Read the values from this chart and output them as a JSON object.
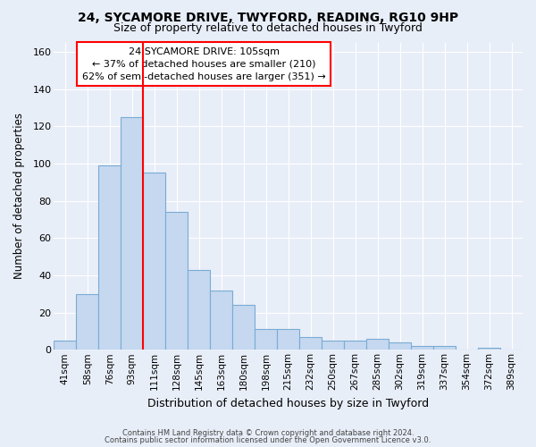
{
  "title1": "24, SYCAMORE DRIVE, TWYFORD, READING, RG10 9HP",
  "title2": "Size of property relative to detached houses in Twyford",
  "xlabel": "Distribution of detached houses by size in Twyford",
  "ylabel": "Number of detached properties",
  "categories": [
    "41sqm",
    "58sqm",
    "76sqm",
    "93sqm",
    "111sqm",
    "128sqm",
    "145sqm",
    "163sqm",
    "180sqm",
    "198sqm",
    "215sqm",
    "232sqm",
    "250sqm",
    "267sqm",
    "285sqm",
    "302sqm",
    "319sqm",
    "337sqm",
    "354sqm",
    "372sqm",
    "389sqm"
  ],
  "values": [
    5,
    30,
    99,
    125,
    95,
    74,
    43,
    32,
    24,
    11,
    11,
    7,
    5,
    5,
    6,
    4,
    2,
    2,
    0,
    1,
    0
  ],
  "bar_color": "#c5d8f0",
  "bar_edge_color": "#7aabd4",
  "annotation_title": "24 SYCAMORE DRIVE: 105sqm",
  "annotation_line1": "← 37% of detached houses are smaller (210)",
  "annotation_line2": "62% of semi-detached houses are larger (351) →",
  "red_line_x": 3.5,
  "ylim": [
    0,
    165
  ],
  "yticks": [
    0,
    20,
    40,
    60,
    80,
    100,
    120,
    140,
    160
  ],
  "footer1": "Contains HM Land Registry data © Crown copyright and database right 2024.",
  "footer2": "Contains public sector information licensed under the Open Government Licence v3.0.",
  "background_color": "#e8eef8",
  "grid_color": "#ffffff"
}
